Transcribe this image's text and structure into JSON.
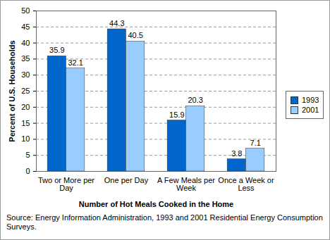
{
  "chart_data": {
    "type": "bar",
    "x_label": "Number of Hot Meals Cooked in the Home",
    "y_label": "Percent of U.S. Households",
    "source": "Source: Energy Information Administration, 1993 and 2001 Residential Energy Consumption Surveys.",
    "categories": [
      "Two or More per Day",
      "One per Day",
      "A Few Meals per Week",
      "Once a Week or Less"
    ],
    "series": [
      {
        "name": "1993",
        "color": "#0066cc",
        "values": [
          35.9,
          44.3,
          15.9,
          3.8
        ]
      },
      {
        "name": "2001",
        "color": "#99ccff",
        "values": [
          32.1,
          40.5,
          20.3,
          7.1
        ]
      }
    ],
    "ylim": [
      0,
      50
    ],
    "yticks": [
      0,
      5,
      10,
      15,
      20,
      25,
      30,
      35,
      40,
      45,
      50
    ],
    "grid": true,
    "legend": "right",
    "data_labels": true
  }
}
